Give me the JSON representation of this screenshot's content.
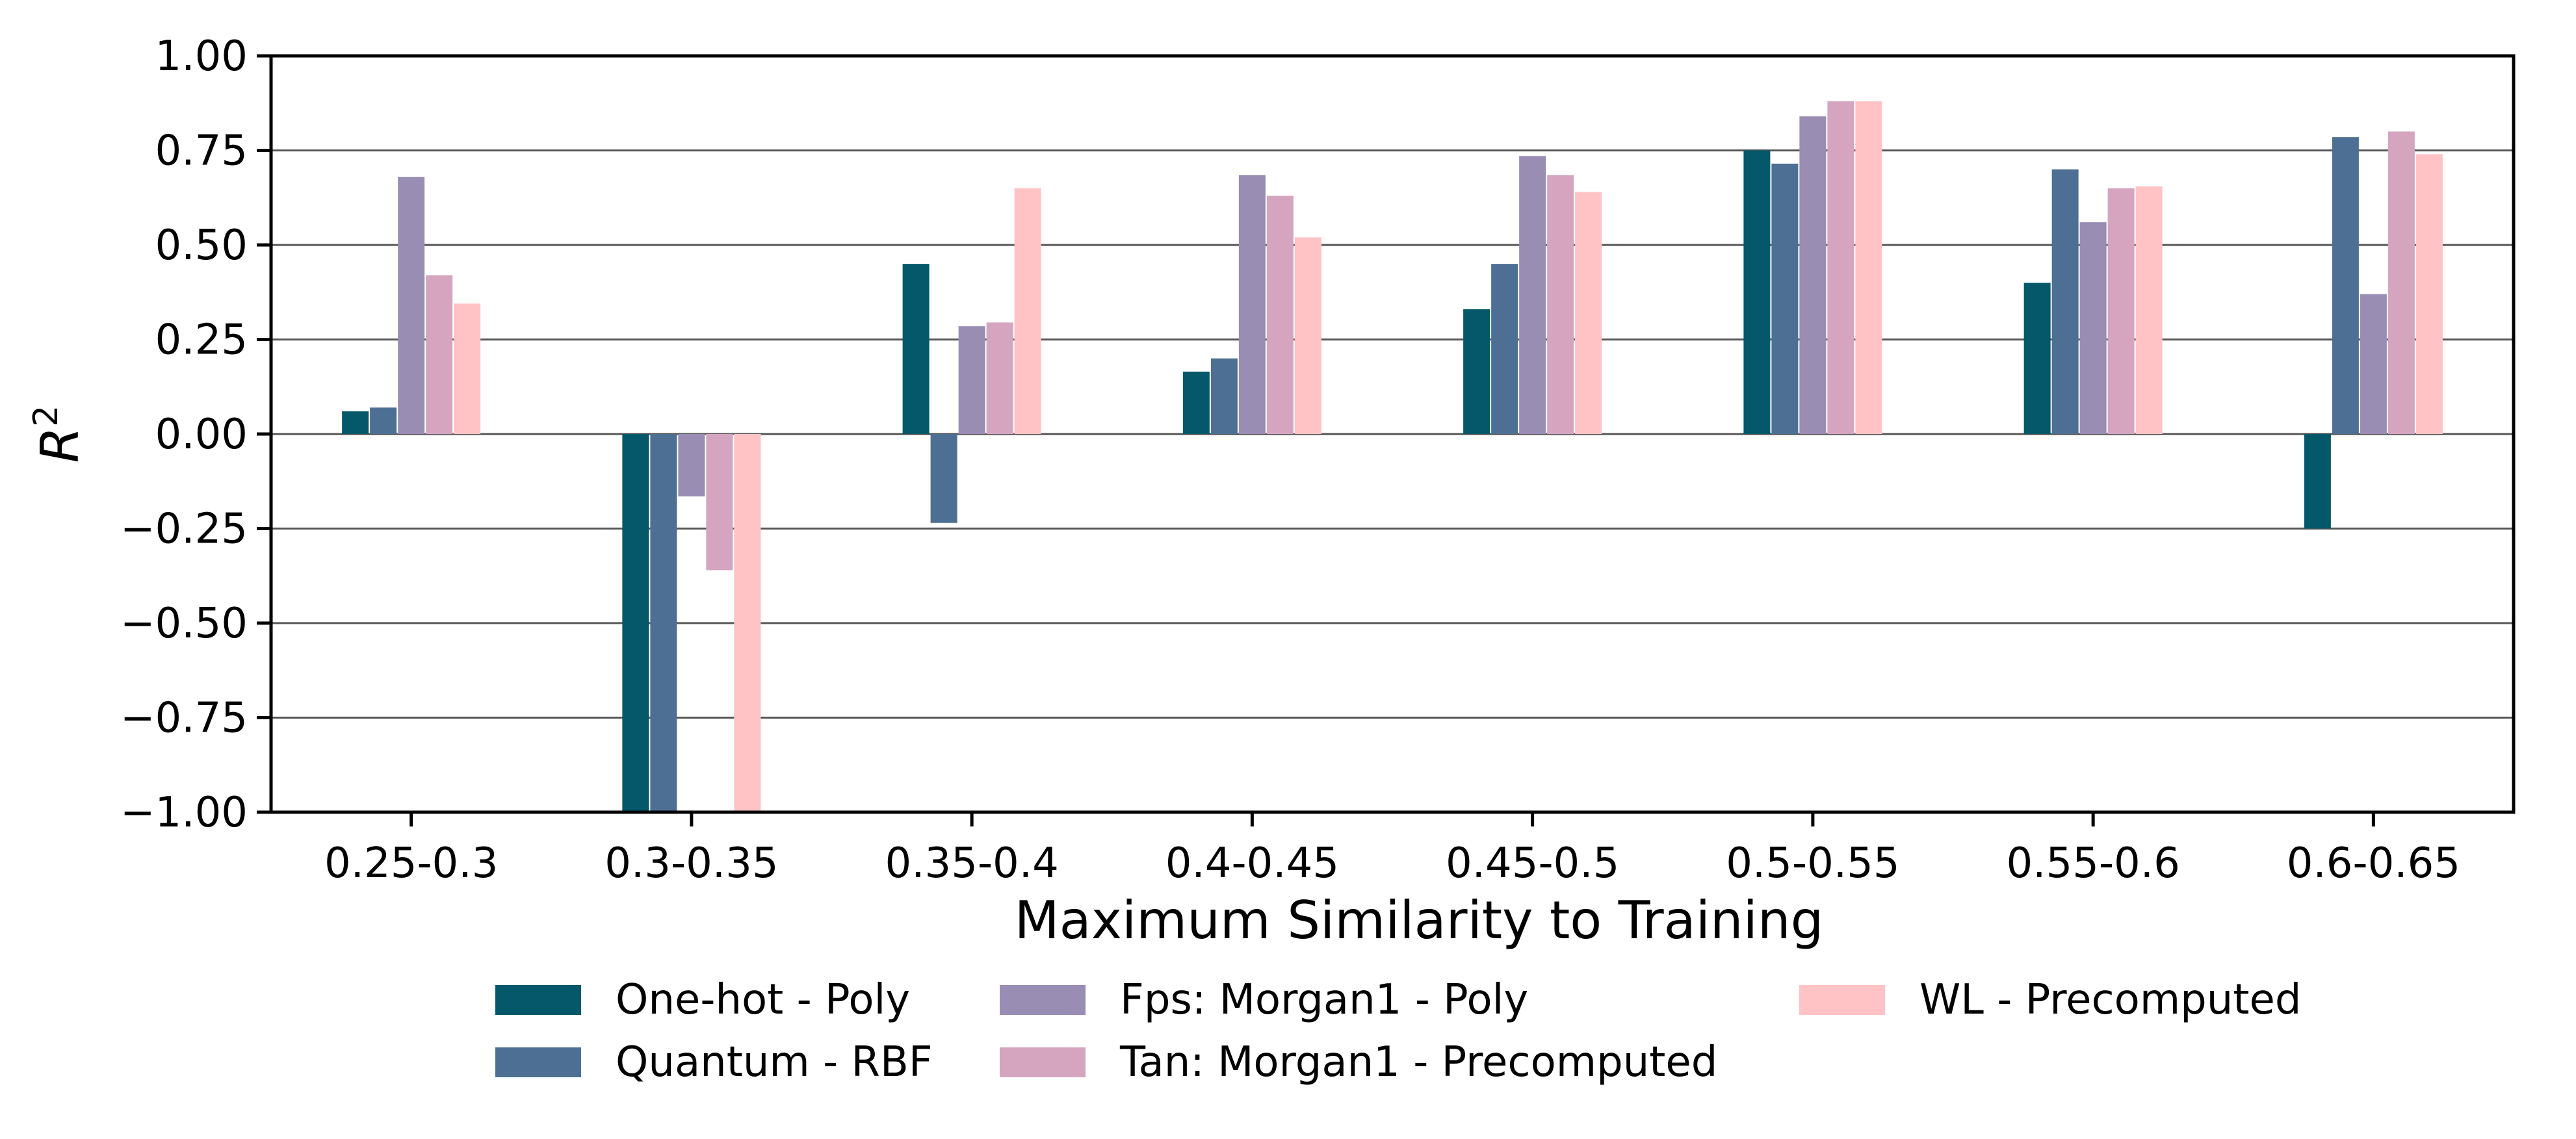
{
  "chart_data": {
    "type": "bar",
    "xlabel": "Maximum Similarity to Training",
    "ylabel_base": "R",
    "ylabel_sup": "2",
    "ylim": [
      -1.0,
      1.0
    ],
    "yticks": [
      "1.00",
      "0.75",
      "0.50",
      "0.25",
      "0.00",
      "−0.25",
      "−0.50",
      "−0.75",
      "−1.00"
    ],
    "ytick_values": [
      1.0,
      0.75,
      0.5,
      0.25,
      0.0,
      -0.25,
      -0.5,
      -0.75,
      -1.0
    ],
    "grid": "horizontal",
    "legend_position": "bottom-center",
    "categories": [
      "0.25-0.3",
      "0.3-0.35",
      "0.35-0.4",
      "0.4-0.45",
      "0.45-0.5",
      "0.5-0.55",
      "0.55-0.6",
      "0.6-0.65"
    ],
    "series": [
      {
        "name": "One-hot - Poly",
        "color": "#04586a",
        "values": [
          0.06,
          -1.0,
          0.45,
          0.165,
          0.33,
          0.75,
          0.4,
          -0.25
        ]
      },
      {
        "name": "Quantum - RBF",
        "color": "#4d6f93",
        "values": [
          0.07,
          -1.0,
          -0.235,
          0.2,
          0.45,
          0.715,
          0.7,
          0.785
        ]
      },
      {
        "name": "Fps: Morgan1 - Poly",
        "color": "#998db4",
        "values": [
          0.68,
          -0.165,
          0.285,
          0.685,
          0.735,
          0.84,
          0.56,
          0.37
        ]
      },
      {
        "name": "Tan: Morgan1 - Precomputed",
        "color": "#d5a5c0",
        "values": [
          0.42,
          -0.36,
          0.295,
          0.63,
          0.685,
          0.88,
          0.65,
          0.8
        ]
      },
      {
        "name": "WL - Precomputed",
        "color": "#ffc3c5",
        "values": [
          0.345,
          -1.0,
          0.65,
          0.52,
          0.64,
          0.88,
          0.655,
          0.74
        ]
      }
    ]
  }
}
